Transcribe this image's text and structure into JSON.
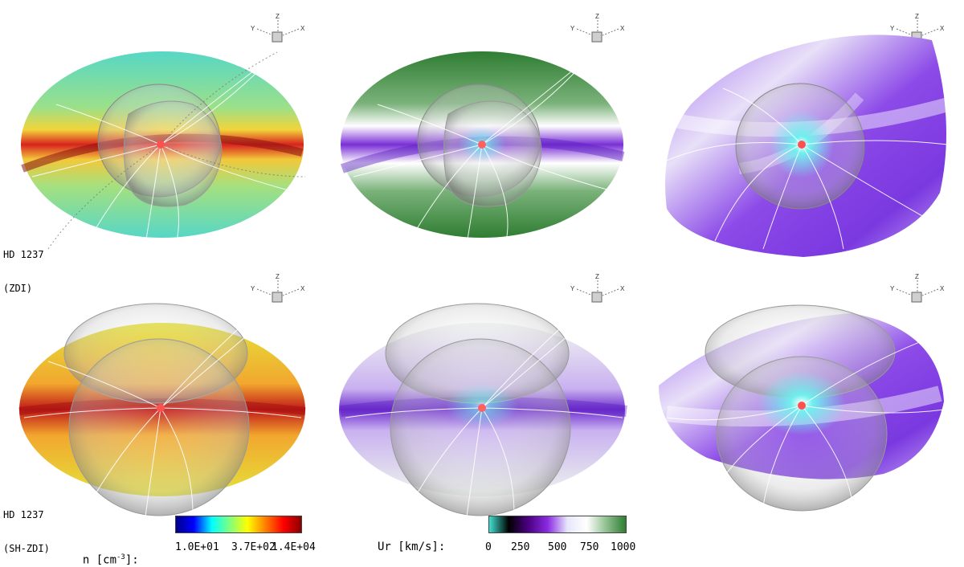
{
  "axes_triad": {
    "x": "X",
    "y": "Y",
    "z": "Z"
  },
  "rows": [
    {
      "name_line1": "HD 1237",
      "name_line2": "(ZDI)"
    },
    {
      "name_line1": "HD 1237",
      "name_line2": "(SH-ZDI)"
    }
  ],
  "colorbars": [
    {
      "quantity": "n [cm",
      "exponent": "-3",
      "suffix": "]:",
      "ticks": [
        "1.0E+01",
        "3.7E+02",
        "1.4E+04"
      ],
      "colors": [
        "#00008b",
        "#0000ff",
        "#00ffff",
        "#7fff7f",
        "#ffff00",
        "#ff7f00",
        "#ff0000",
        "#8b0000"
      ]
    },
    {
      "quantity": "Ur [km/s]:",
      "ticks": [
        "0",
        "250",
        "500",
        "750",
        "1000"
      ],
      "colors": [
        "#40e0d0",
        "#000000",
        "#4b0082",
        "#8a2be2",
        "#e6e6fa",
        "#ffffff",
        "#90c090",
        "#2e7d32"
      ]
    }
  ]
}
